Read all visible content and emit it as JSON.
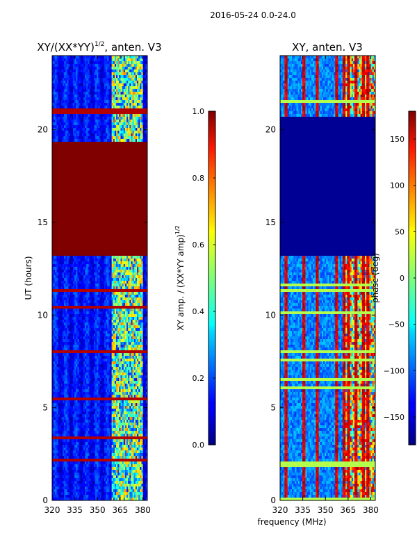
{
  "suptitle": "2016-05-24 0.0-24.0",
  "shared_xlabel": "frequency (MHz)",
  "chart_data": [
    {
      "type": "heatmap",
      "title_prefix": "XY/(XX*YY)",
      "title_exp": "1/2",
      "title_suffix": ", anten. V3",
      "xlabel": "",
      "ylabel": "UT (hours)",
      "x_range": [
        320,
        383
      ],
      "xticks": [
        320,
        335,
        350,
        365,
        380
      ],
      "y_range": [
        0,
        24
      ],
      "yticks": [
        0,
        5,
        10,
        15,
        20
      ],
      "saturated_band_hours": [
        13.2,
        19.4
      ],
      "bright_channels_mhz": [
        359,
        380
      ],
      "colorbar": {
        "label_prefix": "XY amp. / (XX*YY amp)",
        "label_exp": "1/2",
        "range": [
          0.0,
          1.0
        ],
        "ticks": [
          "0.0",
          "0.2",
          "0.4",
          "0.6",
          "0.8",
          "1.0"
        ],
        "tick_values": [
          0.0,
          0.2,
          0.4,
          0.6,
          0.8,
          1.0
        ]
      }
    },
    {
      "type": "heatmap",
      "title": "XY, anten. V3",
      "xlabel": "",
      "ylabel": "",
      "x_range": [
        320,
        383
      ],
      "xticks": [
        320,
        335,
        350,
        365,
        380
      ],
      "y_range": [
        0,
        24
      ],
      "yticks": [
        0,
        5,
        10,
        15,
        20
      ],
      "flagged_band_hours": [
        13.2,
        20.7
      ],
      "bright_channels_mhz": [
        324,
        336,
        345,
        357,
        362,
        365,
        370,
        375,
        378
      ],
      "colorbar": {
        "label": "phase (deg)",
        "range": [
          -180,
          180
        ],
        "ticks": [
          "150",
          "100",
          "50",
          "0",
          "−50",
          "−100",
          "−150"
        ],
        "tick_values": [
          150,
          100,
          50,
          0,
          -50,
          -100,
          -150
        ]
      }
    }
  ]
}
